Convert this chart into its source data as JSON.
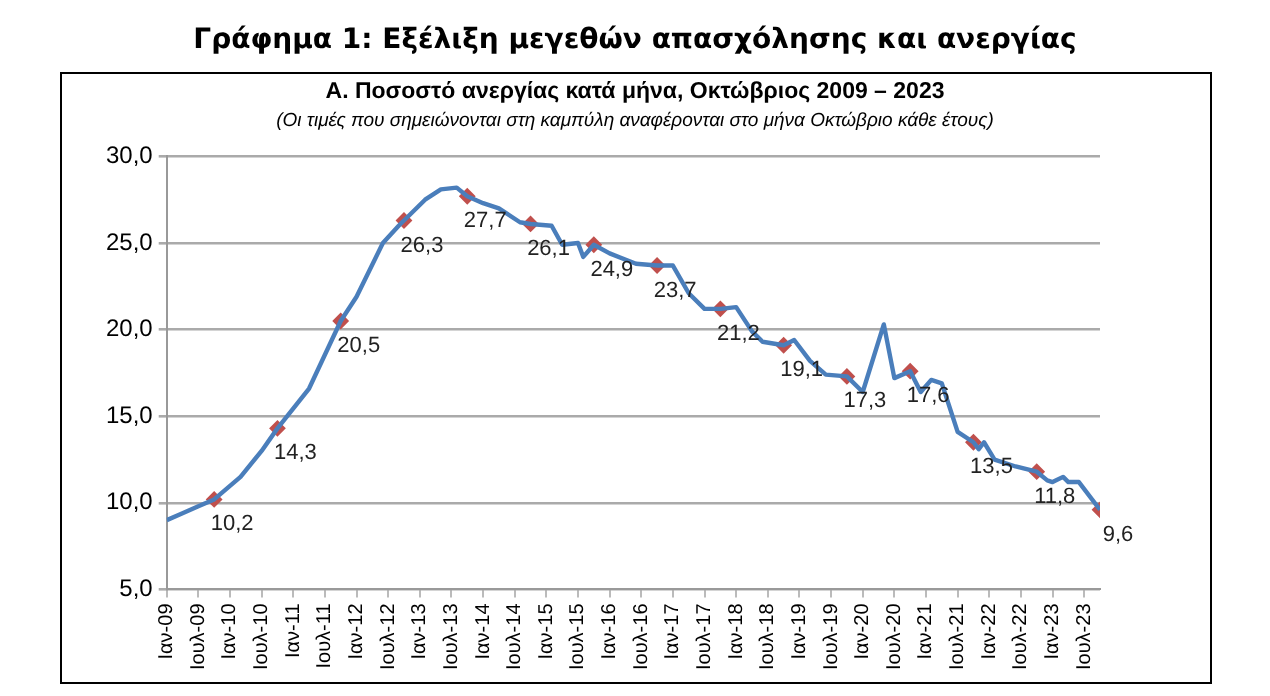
{
  "chart_data": {
    "type": "line",
    "title": "Γράφημα 1: Εξέλιξη μεγεθών απασχόλησης και ανεργίας",
    "subtitle": "Α. Ποσοστό ανεργίας κατά μήνα, Οκτώβριος 2009 – 2023",
    "annotations": [
      "(Οι τιμές που σημειώνονται στη καμπύλη αναφέρονται στο μήνα Οκτώβριο κάθε έτους)"
    ],
    "series": [
      {
        "type": "line",
        "color": "#4a7ebb",
        "marker": "none",
        "x": [
          "2009-01",
          "2009-04",
          "2009-07",
          "2009-10",
          "2010-03",
          "2010-07",
          "2010-10",
          "2011-04",
          "2011-10",
          "2012-01",
          "2012-06",
          "2012-09",
          "2012-10",
          "2013-02",
          "2013-05",
          "2013-08",
          "2013-10",
          "2014-01",
          "2014-04",
          "2014-08",
          "2014-10",
          "2015-02",
          "2015-04",
          "2015-07",
          "2015-08",
          "2015-10",
          "2016-01",
          "2016-06",
          "2016-10",
          "2017-01",
          "2017-04",
          "2017-07",
          "2017-10",
          "2018-01",
          "2018-04",
          "2018-06",
          "2018-10",
          "2018-12",
          "2019-03",
          "2019-06",
          "2019-10",
          "2020-01",
          "2020-05",
          "2020-07",
          "2020-10",
          "2020-12",
          "2021-02",
          "2021-04",
          "2021-07",
          "2021-10",
          "2021-11",
          "2021-12",
          "2022-02",
          "2022-06",
          "2022-10",
          "2022-12",
          "2023-01",
          "2023-03",
          "2023-04",
          "2023-06",
          "2023-10"
        ],
        "values": [
          9.0,
          9.4,
          9.8,
          10.2,
          11.5,
          13.0,
          14.3,
          16.6,
          20.5,
          21.9,
          25.0,
          26.0,
          26.3,
          27.5,
          28.1,
          28.2,
          27.7,
          27.3,
          27.0,
          26.2,
          26.1,
          26.0,
          24.9,
          25.0,
          24.2,
          24.9,
          24.4,
          23.8,
          23.7,
          23.7,
          22.1,
          21.2,
          21.2,
          21.3,
          19.9,
          19.3,
          19.1,
          19.4,
          18.2,
          17.4,
          17.3,
          16.4,
          20.3,
          17.2,
          17.6,
          16.4,
          17.1,
          16.9,
          14.1,
          13.5,
          13.1,
          13.5,
          12.5,
          12.1,
          11.8,
          11.3,
          11.2,
          11.5,
          11.2,
          11.2,
          9.6
        ]
      },
      {
        "type": "scatter",
        "color": "#c0504d",
        "marker": "diamond",
        "x": [
          "2009-10",
          "2010-10",
          "2011-10",
          "2012-10",
          "2013-10",
          "2014-10",
          "2015-10",
          "2016-10",
          "2017-10",
          "2018-10",
          "2019-10",
          "2020-10",
          "2021-10",
          "2022-10",
          "2023-10"
        ],
        "values": [
          10.2,
          14.3,
          20.5,
          26.3,
          27.7,
          26.1,
          24.9,
          23.7,
          21.2,
          19.1,
          17.3,
          17.6,
          13.5,
          11.8,
          9.6
        ],
        "value_labels": [
          "10,2",
          "14,3",
          "20,5",
          "26,3",
          "27,7",
          "26,1",
          "24,9",
          "23,7",
          "21,2",
          "19,1",
          "17,3",
          "17,6",
          "13,5",
          "11,8",
          "9,6"
        ]
      }
    ],
    "xlim": [
      "2009-01",
      "2023-10"
    ],
    "xticks": [
      {
        "value": "2009-01",
        "label": "Ιαν-09"
      },
      {
        "value": "2009-07",
        "label": "Ιουλ-09"
      },
      {
        "value": "2010-01",
        "label": "Ιαν-10"
      },
      {
        "value": "2010-07",
        "label": "Ιουλ-10"
      },
      {
        "value": "2011-01",
        "label": "Ιαν-11"
      },
      {
        "value": "2011-07",
        "label": "Ιουλ-11"
      },
      {
        "value": "2012-01",
        "label": "Ιαν-12"
      },
      {
        "value": "2012-07",
        "label": "Ιουλ-12"
      },
      {
        "value": "2013-01",
        "label": "Ιαν-13"
      },
      {
        "value": "2013-07",
        "label": "Ιουλ-13"
      },
      {
        "value": "2014-01",
        "label": "Ιαν-14"
      },
      {
        "value": "2014-07",
        "label": "Ιουλ-14"
      },
      {
        "value": "2015-01",
        "label": "Ιαν-15"
      },
      {
        "value": "2015-07",
        "label": "Ιουλ-15"
      },
      {
        "value": "2016-01",
        "label": "Ιαν-16"
      },
      {
        "value": "2016-07",
        "label": "Ιουλ-16"
      },
      {
        "value": "2017-01",
        "label": "Ιαν-17"
      },
      {
        "value": "2017-07",
        "label": "Ιουλ-17"
      },
      {
        "value": "2018-01",
        "label": "Ιαν-18"
      },
      {
        "value": "2018-07",
        "label": "Ιουλ-18"
      },
      {
        "value": "2019-01",
        "label": "Ιαν-19"
      },
      {
        "value": "2019-07",
        "label": "Ιουλ-19"
      },
      {
        "value": "2020-01",
        "label": "Ιαν-20"
      },
      {
        "value": "2020-07",
        "label": "Ιουλ-20"
      },
      {
        "value": "2021-01",
        "label": "Ιαν-21"
      },
      {
        "value": "2021-07",
        "label": "Ιουλ-21"
      },
      {
        "value": "2022-01",
        "label": "Ιαν-22"
      },
      {
        "value": "2022-07",
        "label": "Ιουλ-22"
      },
      {
        "value": "2023-01",
        "label": "Ιαν-23"
      },
      {
        "value": "2023-07",
        "label": "Ιουλ-23"
      }
    ],
    "ylim": [
      5,
      30
    ],
    "yticks": [
      {
        "value": 5,
        "label": "5,0"
      },
      {
        "value": 10,
        "label": "10,0"
      },
      {
        "value": 15,
        "label": "15,0"
      },
      {
        "value": 20,
        "label": "20,0"
      },
      {
        "value": 25,
        "label": "25,0"
      },
      {
        "value": 30,
        "label": "30,0"
      }
    ],
    "grid": "y",
    "legend": false
  }
}
